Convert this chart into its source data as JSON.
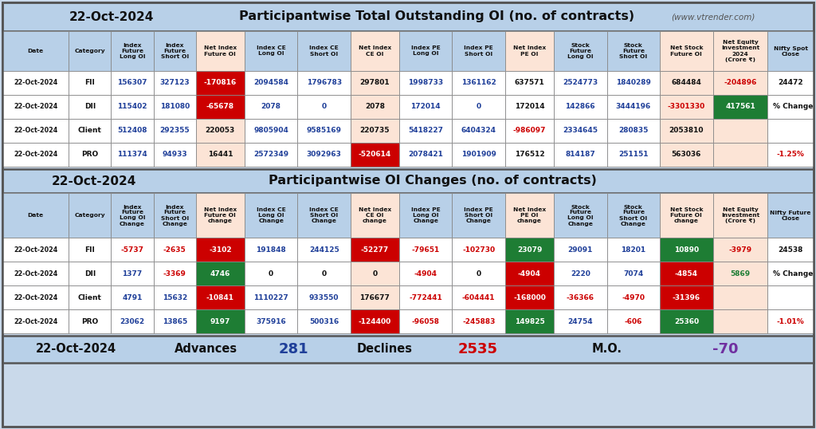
{
  "title1_date": "22-Oct-2024",
  "title1_main": "Participantwise Total Outstanding OI (no. of contracts)",
  "title1_sub": "(www.vtrender.com)",
  "title2_date": "22-Oct-2024",
  "title2_main": "Participantwise OI Changes (no. of contracts)",
  "footer_date": "22-Oct-2024",
  "footer_advances_label": "Advances",
  "footer_advances_val": "281",
  "footer_declines_label": "Declines",
  "footer_declines_val": "2535",
  "footer_mo_label": "M.O.",
  "footer_mo_val": "-70",
  "header1": [
    "Date",
    "Category",
    "Index\nFuture\nLong OI",
    "Index\nFuture\nShort OI",
    "Net Index\nFuture OI",
    "Index CE\nLong OI",
    "Index CE\nShort OI",
    "Net Index\nCE OI",
    "Index PE\nLong OI",
    "Index PE\nShort OI",
    "Net Index\nPE OI",
    "Stock\nFuture\nLong OI",
    "Stock\nFuture\nShort OI",
    "Net Stock\nFuture OI",
    "Net Equity\nInvestment\n2024\n(Crore ₹)",
    "Nifty Spot\nClose"
  ],
  "rows1": [
    [
      "22-Oct-2024",
      "FII",
      "156307",
      "327123",
      "-170816",
      "2094584",
      "1796783",
      "297801",
      "1998733",
      "1361162",
      "637571",
      "2524773",
      "1840289",
      "684484",
      "-204896",
      "24472"
    ],
    [
      "22-Oct-2024",
      "DII",
      "115402",
      "181080",
      "-65678",
      "2078",
      "0",
      "2078",
      "172014",
      "0",
      "172014",
      "142866",
      "3444196",
      "-3301330",
      "417561",
      ""
    ],
    [
      "22-Oct-2024",
      "Client",
      "512408",
      "292355",
      "220053",
      "9805904",
      "9585169",
      "220735",
      "5418227",
      "6404324",
      "-986097",
      "2334645",
      "280835",
      "2053810",
      "",
      ""
    ],
    [
      "22-Oct-2024",
      "PRO",
      "111374",
      "94933",
      "16441",
      "2572349",
      "3092963",
      "-520614",
      "2078421",
      "1901909",
      "176512",
      "814187",
      "251151",
      "563036",
      "",
      "-1.25%"
    ]
  ],
  "header2": [
    "Date",
    "Category",
    "Index\nFuture\nLong OI\nChange",
    "Index\nFuture\nShort OI\nChange",
    "Net Index\nFuture OI\nchange",
    "Index CE\nLong OI\nChange",
    "Index CE\nShort OI\nChange",
    "Net Index\nCE OI\nchange",
    "Index PE\nLong OI\nChange",
    "Index PE\nShort OI\nChange",
    "Net Index\nPE OI\nchange",
    "Stock\nFuture\nLong OI\nChange",
    "Stock\nFuture\nShort OI\nChange",
    "Net Stock\nFuture OI\nchange",
    "Net Equity\nInvestment\n(Crore ₹)",
    "Nifty Future\nClose"
  ],
  "rows2": [
    [
      "22-Oct-2024",
      "FII",
      "-5737",
      "-2635",
      "-3102",
      "191848",
      "244125",
      "-52277",
      "-79651",
      "-102730",
      "23079",
      "29091",
      "18201",
      "10890",
      "-3979",
      "24538"
    ],
    [
      "22-Oct-2024",
      "DII",
      "1377",
      "-3369",
      "4746",
      "0",
      "0",
      "0",
      "-4904",
      "0",
      "-4904",
      "2220",
      "7074",
      "-4854",
      "5869",
      ""
    ],
    [
      "22-Oct-2024",
      "Client",
      "4791",
      "15632",
      "-10841",
      "1110227",
      "933550",
      "176677",
      "-772441",
      "-604441",
      "-168000",
      "-36366",
      "-4970",
      "-31396",
      "",
      ""
    ],
    [
      "22-Oct-2024",
      "PRO",
      "23062",
      "13865",
      "9197",
      "375916",
      "500316",
      "-124400",
      "-96058",
      "-245883",
      "149825",
      "24754",
      "-606",
      "25360",
      "",
      "-1.01%"
    ]
  ],
  "bg_main": "#c9d9ea",
  "bg_hdr": "#b8d0e8",
  "bg_white": "#ffffff",
  "bg_salmon": "#fce4d6",
  "bg_green": "#1e7d34",
  "bg_red": "#cc0000",
  "c_red": "#cc0000",
  "c_blue": "#1f3f99",
  "c_dark": "#111111",
  "c_purple": "#7030a0",
  "c_green": "#1e7d34",
  "c_white": "#ffffff",
  "c_gray": "#555555"
}
